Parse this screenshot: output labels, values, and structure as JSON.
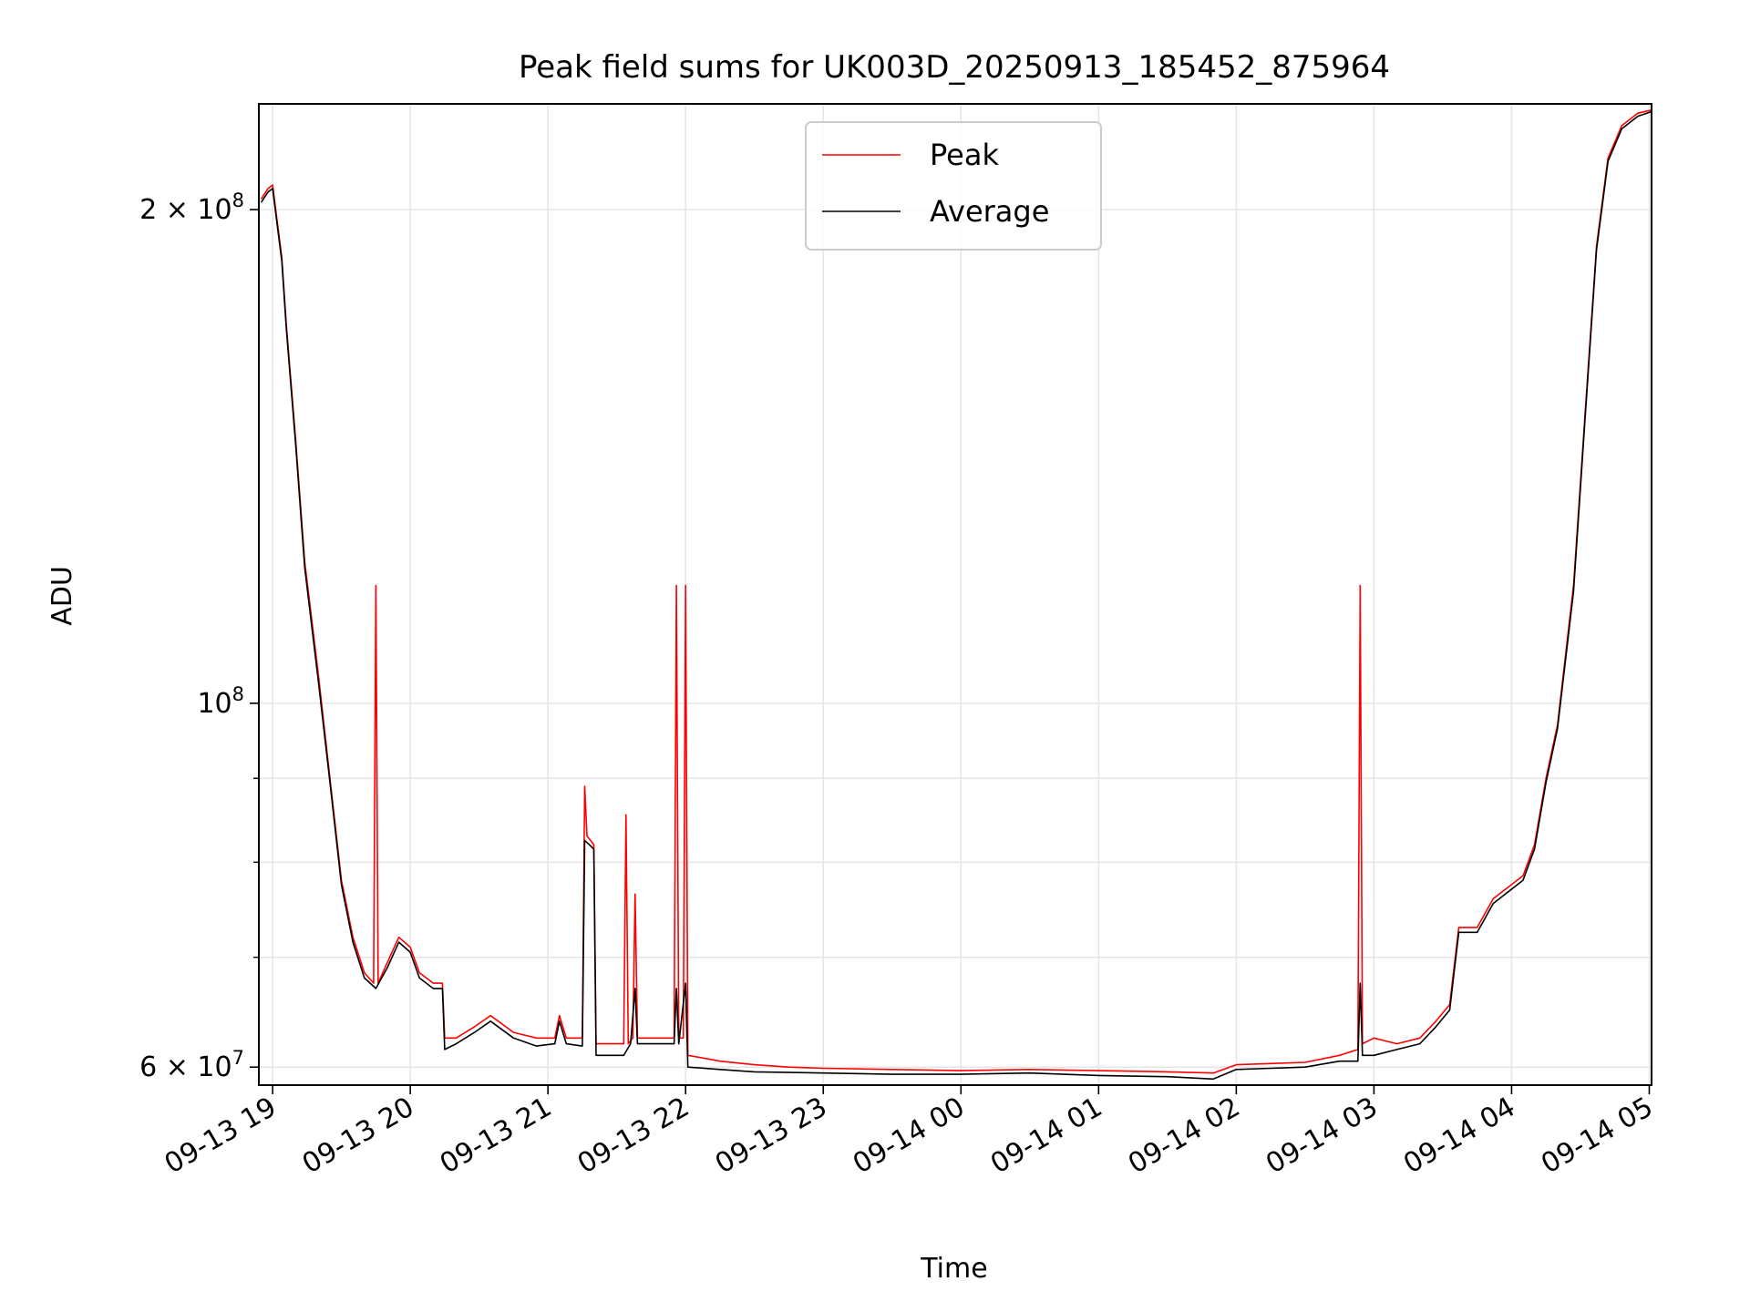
{
  "chart_data": {
    "type": "line",
    "title": "Peak field sums for UK003D_20250913_185452_875964",
    "xlabel": "Time",
    "ylabel": "ADU",
    "y_scale": "log",
    "ylim": [
      58500000,
      232000000
    ],
    "xlim": [
      "2025-09-13 18:54",
      "2025-09-14 05:01"
    ],
    "grid": true,
    "legend_position": "top-center",
    "x_ticks": [
      {
        "value": "2025-09-13 19:00",
        "label": "09-13 19"
      },
      {
        "value": "2025-09-13 20:00",
        "label": "09-13 20"
      },
      {
        "value": "2025-09-13 21:00",
        "label": "09-13 21"
      },
      {
        "value": "2025-09-13 22:00",
        "label": "09-13 22"
      },
      {
        "value": "2025-09-13 23:00",
        "label": "09-13 23"
      },
      {
        "value": "2025-09-14 00:00",
        "label": "09-14 00"
      },
      {
        "value": "2025-09-14 01:00",
        "label": "09-14 01"
      },
      {
        "value": "2025-09-14 02:00",
        "label": "09-14 02"
      },
      {
        "value": "2025-09-14 03:00",
        "label": "09-14 03"
      },
      {
        "value": "2025-09-14 04:00",
        "label": "09-14 04"
      },
      {
        "value": "2025-09-14 05:00",
        "label": "09-14 05"
      }
    ],
    "y_ticks": [
      {
        "value": 60000000,
        "label_base": "6 × 10",
        "label_exp": "7"
      },
      {
        "value": 100000000,
        "label_base": "10",
        "label_exp": "8"
      },
      {
        "value": 200000000,
        "label_base": "2 × 10",
        "label_exp": "8"
      }
    ],
    "y_minor_ticks": [
      70000000,
      80000000,
      90000000
    ],
    "series": [
      {
        "name": "Peak",
        "color": "#ff0000",
        "points": [
          [
            "2025-09-13 18:55",
            203000000
          ],
          [
            "2025-09-13 18:58",
            206000000
          ],
          [
            "2025-09-13 19:00",
            207000000
          ],
          [
            "2025-09-13 19:04",
            187000000
          ],
          [
            "2025-09-13 19:06",
            170000000
          ],
          [
            "2025-09-13 19:10",
            145000000
          ],
          [
            "2025-09-13 19:14",
            122000000
          ],
          [
            "2025-09-13 19:20",
            104000000
          ],
          [
            "2025-09-13 19:25",
            90000000
          ],
          [
            "2025-09-13 19:30",
            78000000
          ],
          [
            "2025-09-13 19:35",
            72000000
          ],
          [
            "2025-09-13 19:40",
            68500000
          ],
          [
            "2025-09-13 19:44",
            67500000
          ],
          [
            "2025-09-13 19:45",
            118000000
          ],
          [
            "2025-09-13 19:46",
            67500000
          ],
          [
            "2025-09-13 19:50",
            69500000
          ],
          [
            "2025-09-13 19:55",
            72000000
          ],
          [
            "2025-09-13 20:00",
            71000000
          ],
          [
            "2025-09-13 20:04",
            68500000
          ],
          [
            "2025-09-13 20:10",
            67500000
          ],
          [
            "2025-09-13 20:14",
            67500000
          ],
          [
            "2025-09-13 20:15",
            62500000
          ],
          [
            "2025-09-13 20:20",
            62500000
          ],
          [
            "2025-09-13 20:28",
            63500000
          ],
          [
            "2025-09-13 20:35",
            64500000
          ],
          [
            "2025-09-13 20:45",
            63000000
          ],
          [
            "2025-09-13 20:55",
            62500000
          ],
          [
            "2025-09-13 21:03",
            62500000
          ],
          [
            "2025-09-13 21:05",
            64500000
          ],
          [
            "2025-09-13 21:08",
            62500000
          ],
          [
            "2025-09-13 21:15",
            62500000
          ],
          [
            "2025-09-13 21:16",
            89000000
          ],
          [
            "2025-09-13 21:17",
            83000000
          ],
          [
            "2025-09-13 21:20",
            82000000
          ],
          [
            "2025-09-13 21:21",
            62000000
          ],
          [
            "2025-09-13 21:30",
            62000000
          ],
          [
            "2025-09-13 21:33",
            62000000
          ],
          [
            "2025-09-13 21:34",
            85500000
          ],
          [
            "2025-09-13 21:35",
            62000000
          ],
          [
            "2025-09-13 21:37",
            62500000
          ],
          [
            "2025-09-13 21:38",
            76500000
          ],
          [
            "2025-09-13 21:39",
            62500000
          ],
          [
            "2025-09-13 21:45",
            62500000
          ],
          [
            "2025-09-13 21:55",
            62500000
          ],
          [
            "2025-09-13 21:56",
            118000000
          ],
          [
            "2025-09-13 21:57",
            62500000
          ],
          [
            "2025-09-13 21:59",
            62500000
          ],
          [
            "2025-09-13 22:00",
            118000000
          ],
          [
            "2025-09-13 22:01",
            61000000
          ],
          [
            "2025-09-13 22:15",
            60500000
          ],
          [
            "2025-09-13 22:30",
            60200000
          ],
          [
            "2025-09-13 22:45",
            60000000
          ],
          [
            "2025-09-13 23:00",
            59900000
          ],
          [
            "2025-09-13 23:30",
            59800000
          ],
          [
            "2025-09-14 00:00",
            59700000
          ],
          [
            "2025-09-14 00:30",
            59800000
          ],
          [
            "2025-09-14 01:00",
            59700000
          ],
          [
            "2025-09-14 01:30",
            59600000
          ],
          [
            "2025-09-14 01:50",
            59500000
          ],
          [
            "2025-09-14 02:00",
            60200000
          ],
          [
            "2025-09-14 02:30",
            60400000
          ],
          [
            "2025-09-14 02:45",
            61000000
          ],
          [
            "2025-09-14 02:53",
            61500000
          ],
          [
            "2025-09-14 02:54",
            118000000
          ],
          [
            "2025-09-14 02:55",
            62000000
          ],
          [
            "2025-09-14 03:00",
            62500000
          ],
          [
            "2025-09-14 03:10",
            62000000
          ],
          [
            "2025-09-14 03:20",
            62500000
          ],
          [
            "2025-09-14 03:27",
            64000000
          ],
          [
            "2025-09-14 03:33",
            65500000
          ],
          [
            "2025-09-14 03:37",
            73000000
          ],
          [
            "2025-09-14 03:45",
            73000000
          ],
          [
            "2025-09-14 03:52",
            76000000
          ],
          [
            "2025-09-14 04:05",
            78500000
          ],
          [
            "2025-09-14 04:10",
            82000000
          ],
          [
            "2025-09-14 04:15",
            90000000
          ],
          [
            "2025-09-14 04:20",
            97000000
          ],
          [
            "2025-09-14 04:27",
            118000000
          ],
          [
            "2025-09-14 04:32",
            150000000
          ],
          [
            "2025-09-14 04:37",
            190000000
          ],
          [
            "2025-09-14 04:42",
            215000000
          ],
          [
            "2025-09-14 04:48",
            225000000
          ],
          [
            "2025-09-14 04:55",
            229000000
          ],
          [
            "2025-09-14 05:01",
            230000000
          ]
        ]
      },
      {
        "name": "Average",
        "color": "#000000",
        "points": [
          [
            "2025-09-13 18:55",
            202000000
          ],
          [
            "2025-09-13 18:58",
            205000000
          ],
          [
            "2025-09-13 19:00",
            206000000
          ],
          [
            "2025-09-13 19:04",
            186000000
          ],
          [
            "2025-09-13 19:06",
            169000000
          ],
          [
            "2025-09-13 19:10",
            144000000
          ],
          [
            "2025-09-13 19:14",
            121000000
          ],
          [
            "2025-09-13 19:20",
            103000000
          ],
          [
            "2025-09-13 19:25",
            89500000
          ],
          [
            "2025-09-13 19:30",
            77500000
          ],
          [
            "2025-09-13 19:35",
            71500000
          ],
          [
            "2025-09-13 19:40",
            68000000
          ],
          [
            "2025-09-13 19:45",
            67000000
          ],
          [
            "2025-09-13 19:50",
            69000000
          ],
          [
            "2025-09-13 19:55",
            71500000
          ],
          [
            "2025-09-13 20:00",
            70500000
          ],
          [
            "2025-09-13 20:04",
            68000000
          ],
          [
            "2025-09-13 20:10",
            67000000
          ],
          [
            "2025-09-13 20:14",
            67000000
          ],
          [
            "2025-09-13 20:15",
            61500000
          ],
          [
            "2025-09-13 20:20",
            62000000
          ],
          [
            "2025-09-13 20:28",
            63000000
          ],
          [
            "2025-09-13 20:35",
            64000000
          ],
          [
            "2025-09-13 20:45",
            62500000
          ],
          [
            "2025-09-13 20:55",
            61800000
          ],
          [
            "2025-09-13 21:03",
            62000000
          ],
          [
            "2025-09-13 21:05",
            64000000
          ],
          [
            "2025-09-13 21:08",
            62000000
          ],
          [
            "2025-09-13 21:15",
            61800000
          ],
          [
            "2025-09-13 21:16",
            82500000
          ],
          [
            "2025-09-13 21:20",
            81500000
          ],
          [
            "2025-09-13 21:21",
            61000000
          ],
          [
            "2025-09-13 21:33",
            61000000
          ],
          [
            "2025-09-13 21:36",
            62000000
          ],
          [
            "2025-09-13 21:38",
            67000000
          ],
          [
            "2025-09-13 21:39",
            62000000
          ],
          [
            "2025-09-13 21:55",
            62000000
          ],
          [
            "2025-09-13 21:56",
            67000000
          ],
          [
            "2025-09-13 21:57",
            62000000
          ],
          [
            "2025-09-13 22:00",
            67500000
          ],
          [
            "2025-09-13 22:01",
            60000000
          ],
          [
            "2025-09-13 22:15",
            59800000
          ],
          [
            "2025-09-13 22:30",
            59600000
          ],
          [
            "2025-09-13 23:00",
            59500000
          ],
          [
            "2025-09-13 23:30",
            59400000
          ],
          [
            "2025-09-14 00:00",
            59400000
          ],
          [
            "2025-09-14 00:30",
            59500000
          ],
          [
            "2025-09-14 01:00",
            59300000
          ],
          [
            "2025-09-14 01:30",
            59200000
          ],
          [
            "2025-09-14 01:50",
            59000000
          ],
          [
            "2025-09-14 02:00",
            59800000
          ],
          [
            "2025-09-14 02:30",
            60000000
          ],
          [
            "2025-09-14 02:45",
            60500000
          ],
          [
            "2025-09-14 02:53",
            60500000
          ],
          [
            "2025-09-14 02:54",
            67500000
          ],
          [
            "2025-09-14 02:55",
            61000000
          ],
          [
            "2025-09-14 03:00",
            61000000
          ],
          [
            "2025-09-14 03:10",
            61500000
          ],
          [
            "2025-09-14 03:20",
            62000000
          ],
          [
            "2025-09-14 03:27",
            63500000
          ],
          [
            "2025-09-14 03:33",
            65000000
          ],
          [
            "2025-09-14 03:37",
            72500000
          ],
          [
            "2025-09-14 03:45",
            72500000
          ],
          [
            "2025-09-14 03:52",
            75500000
          ],
          [
            "2025-09-14 04:05",
            78000000
          ],
          [
            "2025-09-14 04:10",
            81500000
          ],
          [
            "2025-09-14 04:15",
            89500000
          ],
          [
            "2025-09-14 04:20",
            96500000
          ],
          [
            "2025-09-14 04:27",
            117000000
          ],
          [
            "2025-09-14 04:32",
            149000000
          ],
          [
            "2025-09-14 04:37",
            189000000
          ],
          [
            "2025-09-14 04:42",
            214000000
          ],
          [
            "2025-09-14 04:48",
            224000000
          ],
          [
            "2025-09-14 04:55",
            228000000
          ],
          [
            "2025-09-14 05:01",
            229500000
          ]
        ]
      }
    ]
  }
}
